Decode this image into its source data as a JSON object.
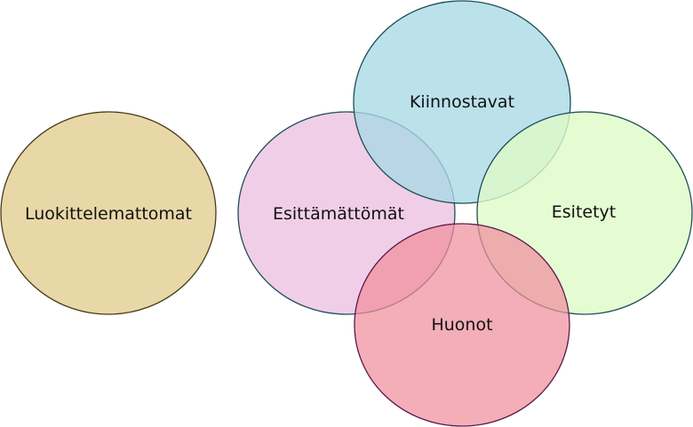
{
  "diagram": {
    "sets": [
      {
        "id": "luokittelemattomat",
        "label": "Luokittelemattomat",
        "fill": "#e8d8a8",
        "stroke": "#4a3a1a"
      },
      {
        "id": "esittamattomat",
        "label": "Esittämättömät",
        "fill": "#f0cbe6",
        "stroke": "#1f4f57"
      },
      {
        "id": "kiinnostavat",
        "label": "Kiinnostavat",
        "fill": "#a8d8e6",
        "stroke": "#1f4f57"
      },
      {
        "id": "esitetyt",
        "label": "Esitetyt",
        "fill": "#dffbc8",
        "stroke": "#1f4f57"
      },
      {
        "id": "huonot",
        "label": "Huonot",
        "fill": "#f08f9c",
        "stroke": "#5a1a4a"
      }
    ]
  }
}
